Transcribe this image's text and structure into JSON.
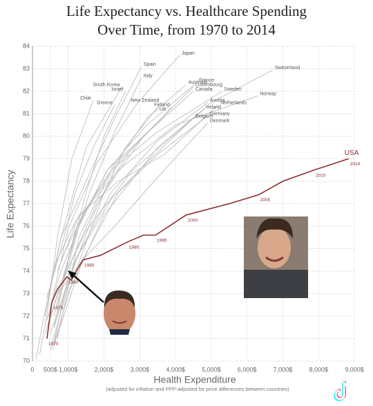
{
  "chart_data": {
    "type": "line",
    "title": "Life Expectancy vs. Healthcare Spending",
    "subtitle": "Over Time, from 1970 to 2014",
    "x_label": "Health Expenditure",
    "x_note": "(adjusted for inflation and PPP-adjusted for price differences between countries)",
    "y_label": "Life Expectancy",
    "xlim": [
      0,
      9000
    ],
    "ylim": [
      70,
      84
    ],
    "xticks": [
      0,
      {
        "value": 500,
        "label": "500$"
      },
      {
        "value": 1000,
        "label": "1,000$"
      },
      {
        "value": 2000,
        "label": "2,000$"
      },
      {
        "value": 3000,
        "label": "3,000$"
      },
      {
        "value": 4000,
        "label": "4,000$"
      },
      {
        "value": 5000,
        "label": "5,000$"
      },
      {
        "value": 6000,
        "label": "6,000$"
      },
      {
        "value": 7000,
        "label": "7,000$"
      },
      {
        "value": 8000,
        "label": "8,000$"
      },
      {
        "value": 9000,
        "label": "9,000$"
      }
    ],
    "yticks": [
      70,
      71,
      72,
      73,
      74,
      75,
      76,
      77,
      78,
      79,
      80,
      81,
      82,
      83,
      84
    ],
    "grid": true,
    "series": [
      {
        "name": "Japan",
        "color": "#b8b8b8",
        "x": [
          450,
          1000,
          1800,
          2900,
          4110
        ],
        "values": [
          72.0,
          75.9,
          78.8,
          81.4,
          83.6
        ]
      },
      {
        "name": "Spain",
        "color": "#b8b8b8",
        "x": [
          350,
          800,
          1500,
          2300,
          3050
        ],
        "values": [
          72.0,
          75.5,
          78.0,
          80.8,
          83.1
        ]
      },
      {
        "name": "Italy",
        "color": "#b8b8b8",
        "x": [
          500,
          1000,
          1600,
          2300,
          3050
        ],
        "values": [
          71.9,
          74.5,
          77.5,
          80.2,
          82.6
        ]
      },
      {
        "name": "Switzerland",
        "color": "#b8b8b8",
        "x": [
          1000,
          2000,
          3500,
          5000,
          6720
        ],
        "values": [
          73.0,
          76.5,
          79.5,
          81.5,
          82.95
        ]
      },
      {
        "name": "South Korea",
        "color": "#b8b8b8",
        "x": [
          100,
          300,
          800,
          1500,
          2500
        ],
        "values": [
          70.1,
          71.8,
          75.5,
          79.5,
          82.2
        ]
      },
      {
        "name": "Israel",
        "color": "#b8b8b8",
        "x": [
          600,
          1000,
          1500,
          2000,
          2600
        ],
        "values": [
          71.5,
          74.5,
          77.5,
          80.0,
          82.0
        ]
      },
      {
        "name": "Australia",
        "color": "#b8b8b8",
        "x": [
          700,
          1300,
          2200,
          3200,
          4300
        ],
        "values": [
          71.0,
          75.5,
          78.5,
          80.8,
          82.3
        ]
      },
      {
        "name": "France",
        "color": "#b8b8b8",
        "x": [
          600,
          1200,
          2100,
          3200,
          4600
        ],
        "values": [
          72.0,
          75.8,
          78.5,
          80.5,
          82.4
        ]
      },
      {
        "name": "Luxembourg",
        "color": "#b8b8b8",
        "x": [
          550,
          1100,
          2000,
          3100,
          4500
        ],
        "values": [
          70.5,
          73.5,
          77.5,
          80.0,
          82.2
        ]
      },
      {
        "name": "Canada",
        "color": "#b8b8b8",
        "x": [
          700,
          1300,
          2100,
          3100,
          4500
        ],
        "values": [
          72.5,
          76.0,
          78.5,
          80.0,
          82.0
        ]
      },
      {
        "name": "Sweden",
        "color": "#b8b8b8",
        "x": [
          800,
          1400,
          2200,
          3500,
          5300
        ],
        "values": [
          74.5,
          76.5,
          78.5,
          80.2,
          82.0
        ]
      },
      {
        "name": "Norway",
        "color": "#b8b8b8",
        "x": [
          600,
          1200,
          2400,
          4000,
          6300
        ],
        "values": [
          74.2,
          76.2,
          78.5,
          80.5,
          81.8
        ]
      },
      {
        "name": "Chile",
        "color": "#b8b8b8",
        "x": [
          200,
          400,
          700,
          1100,
          1700
        ],
        "values": [
          70.3,
          72.0,
          75.5,
          79.0,
          81.6
        ]
      },
      {
        "name": "Greece",
        "color": "#b8b8b8",
        "x": [
          400,
          800,
          1200,
          1700,
          2300
        ],
        "values": [
          72.8,
          75.0,
          77.5,
          79.5,
          81.4
        ]
      },
      {
        "name": "New Zealand",
        "color": "#b8b8b8",
        "x": [
          600,
          1000,
          1700,
          2600,
          3600
        ],
        "values": [
          71.5,
          73.5,
          76.5,
          79.5,
          81.5
        ]
      },
      {
        "name": "Finland",
        "color": "#b8b8b8",
        "x": [
          600,
          1100,
          1800,
          2700,
          3900
        ],
        "values": [
          70.8,
          74.5,
          77.0,
          79.3,
          81.3
        ]
      },
      {
        "name": "UK",
        "color": "#b8b8b8",
        "x": [
          400,
          800,
          1500,
          2500,
          3800
        ],
        "values": [
          71.8,
          74.0,
          76.8,
          79.0,
          81.1
        ]
      },
      {
        "name": "Austria",
        "color": "#b8b8b8",
        "x": [
          500,
          1200,
          2200,
          3500,
          4900
        ],
        "values": [
          70.5,
          74.5,
          77.5,
          79.8,
          81.5
        ]
      },
      {
        "name": "Netherlands",
        "color": "#b8b8b8",
        "x": [
          700,
          1300,
          2400,
          3700,
          5200
        ],
        "values": [
          74.0,
          76.5,
          78.0,
          79.2,
          81.4
        ]
      },
      {
        "name": "Ireland",
        "color": "#b8b8b8",
        "x": [
          350,
          800,
          1500,
          2800,
          4800
        ],
        "values": [
          71.2,
          73.5,
          75.8,
          78.5,
          81.2
        ]
      },
      {
        "name": "Germany",
        "color": "#b8b8b8",
        "x": [
          600,
          1400,
          2400,
          3500,
          4900
        ],
        "values": [
          70.7,
          74.5,
          77.5,
          79.2,
          80.9
        ]
      },
      {
        "name": "Belgium",
        "color": "#b8b8b8",
        "x": [
          500,
          1200,
          2200,
          3300,
          4500
        ],
        "values": [
          71.2,
          74.5,
          77.2,
          79.0,
          80.8
        ]
      },
      {
        "name": "Denmark",
        "color": "#b8b8b8",
        "x": [
          700,
          1400,
          2300,
          3400,
          4900
        ],
        "values": [
          73.0,
          74.5,
          76.0,
          78.0,
          80.6
        ]
      },
      {
        "name": "USA",
        "color": "#8b2e2e",
        "x": [
          405,
          540,
          700,
          965,
          1080,
          1410,
          1900,
          2660,
          3100,
          3440,
          4300,
          5500,
          6330,
          7000,
          7880,
          8840
        ],
        "values": [
          71.0,
          72.6,
          73.2,
          73.75,
          73.6,
          74.5,
          74.7,
          75.3,
          75.6,
          75.6,
          76.5,
          77.0,
          77.4,
          78.0,
          78.5,
          79.0
        ],
        "point_labels": [
          "1970",
          "1975",
          null,
          "1980",
          null,
          "1985",
          null,
          "1990",
          null,
          "1995",
          "2000",
          null,
          "2005",
          null,
          "2010",
          "2014"
        ]
      }
    ]
  }
}
